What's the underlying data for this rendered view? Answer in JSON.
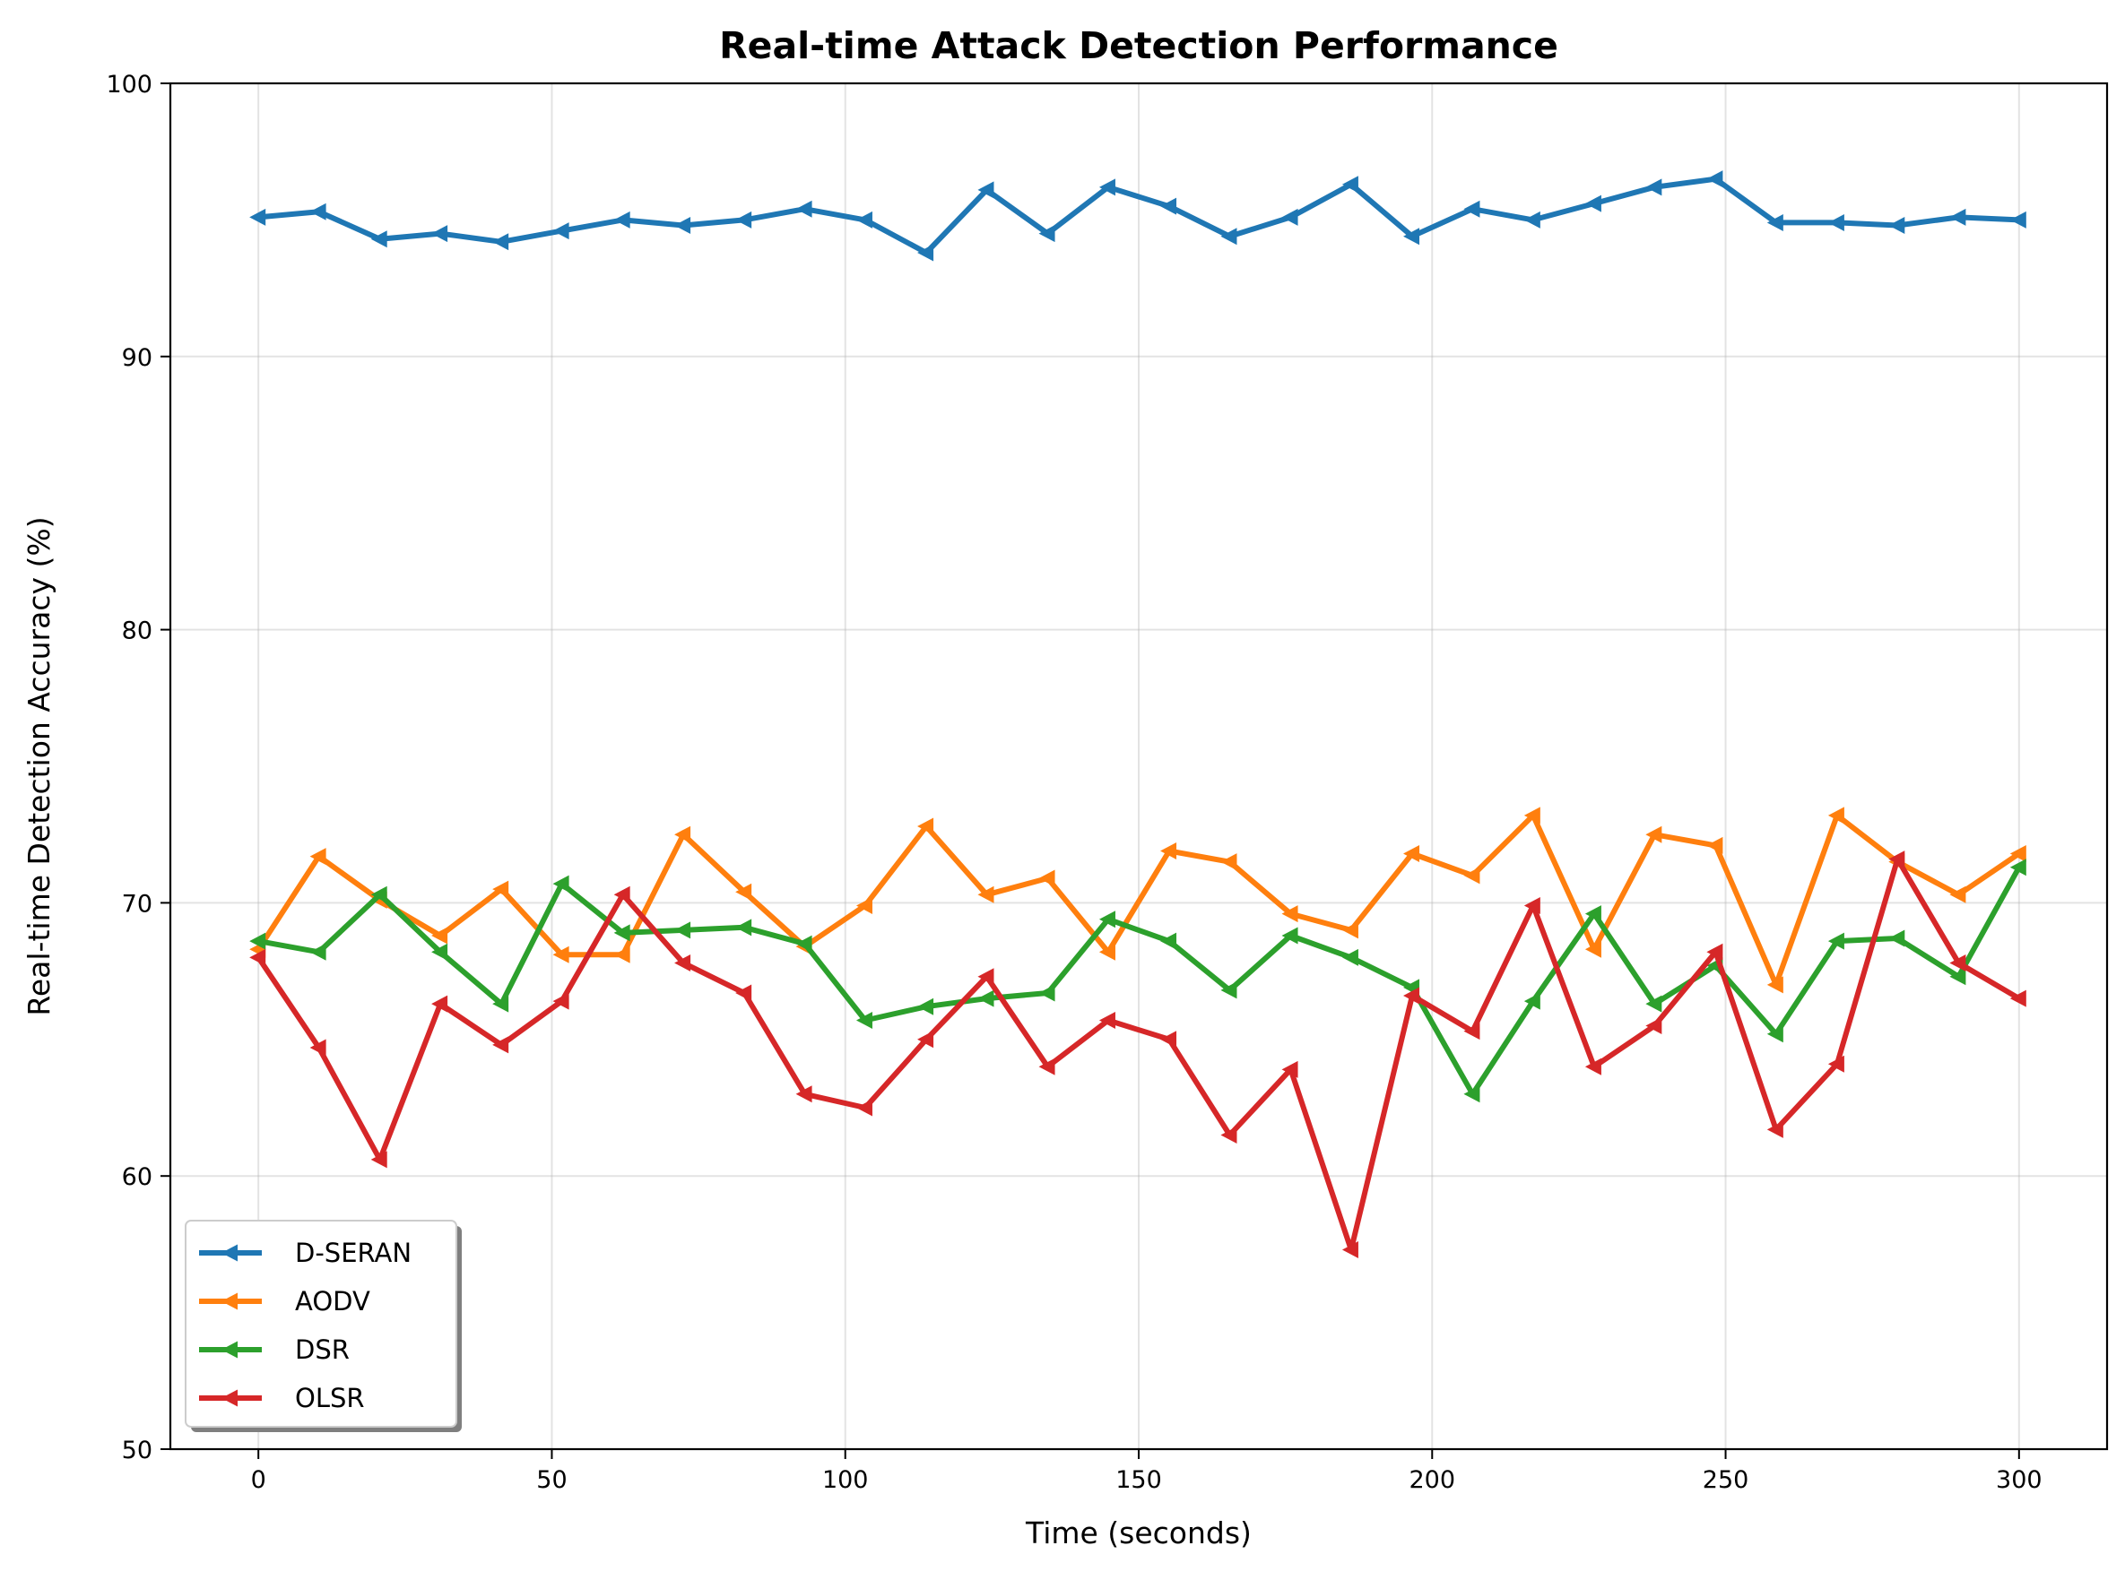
{
  "chart_data": {
    "type": "line",
    "title": "Real-time Attack Detection Performance",
    "xlabel": "Time (seconds)",
    "ylabel": "Real-time Detection Accuracy (%)",
    "xlim": [
      -15,
      315
    ],
    "ylim": [
      50,
      100
    ],
    "xticks": [
      0,
      50,
      100,
      150,
      200,
      250,
      300
    ],
    "yticks": [
      50,
      60,
      70,
      80,
      90,
      100
    ],
    "grid": true,
    "legend_position": "lower-left",
    "marker": "left-triangle",
    "x": [
      0,
      10.3,
      20.7,
      31,
      41.4,
      51.7,
      62.1,
      72.4,
      82.8,
      93.1,
      103.4,
      113.8,
      124.1,
      134.5,
      144.8,
      155.2,
      165.5,
      175.9,
      186.2,
      196.6,
      206.9,
      217.2,
      227.6,
      237.9,
      248.3,
      258.6,
      269,
      279.3,
      289.7,
      300
    ],
    "series": [
      {
        "name": "D-SERAN",
        "color": "#1f77b4",
        "values": [
          95.1,
          95.3,
          94.3,
          94.5,
          94.2,
          94.6,
          95.0,
          94.8,
          95.0,
          95.4,
          95.0,
          93.8,
          96.1,
          94.5,
          96.2,
          95.5,
          94.4,
          95.1,
          96.3,
          94.4,
          95.4,
          95.0,
          95.6,
          96.2,
          96.5,
          94.9,
          94.9,
          94.8,
          95.1,
          95.0
        ]
      },
      {
        "name": "AODV",
        "color": "#ff7f0e",
        "values": [
          68.3,
          71.7,
          70.1,
          68.8,
          70.5,
          68.1,
          68.1,
          72.5,
          70.4,
          68.4,
          69.9,
          72.8,
          70.3,
          70.9,
          68.2,
          71.9,
          71.5,
          69.6,
          69.0,
          71.8,
          71.0,
          73.2,
          68.3,
          72.5,
          72.1,
          67.0,
          73.2,
          71.5,
          70.3,
          71.8
        ]
      },
      {
        "name": "DSR",
        "color": "#2ca02c",
        "values": [
          68.6,
          68.2,
          70.3,
          68.2,
          66.3,
          70.7,
          68.9,
          69.0,
          69.1,
          68.5,
          65.7,
          66.2,
          66.5,
          66.7,
          69.4,
          68.6,
          66.8,
          68.8,
          68.0,
          66.9,
          63.0,
          66.4,
          69.6,
          66.3,
          67.7,
          65.2,
          68.6,
          68.7,
          67.3,
          71.3
        ]
      },
      {
        "name": "OLSR",
        "color": "#d62728",
        "values": [
          68.0,
          64.7,
          60.6,
          66.3,
          64.8,
          66.4,
          70.3,
          67.8,
          66.7,
          63.0,
          62.5,
          65.0,
          67.3,
          64.0,
          65.7,
          65.0,
          61.5,
          63.9,
          57.3,
          66.6,
          65.3,
          69.9,
          64.0,
          65.5,
          68.2,
          61.7,
          64.1,
          71.6,
          67.8,
          66.5
        ]
      }
    ]
  }
}
